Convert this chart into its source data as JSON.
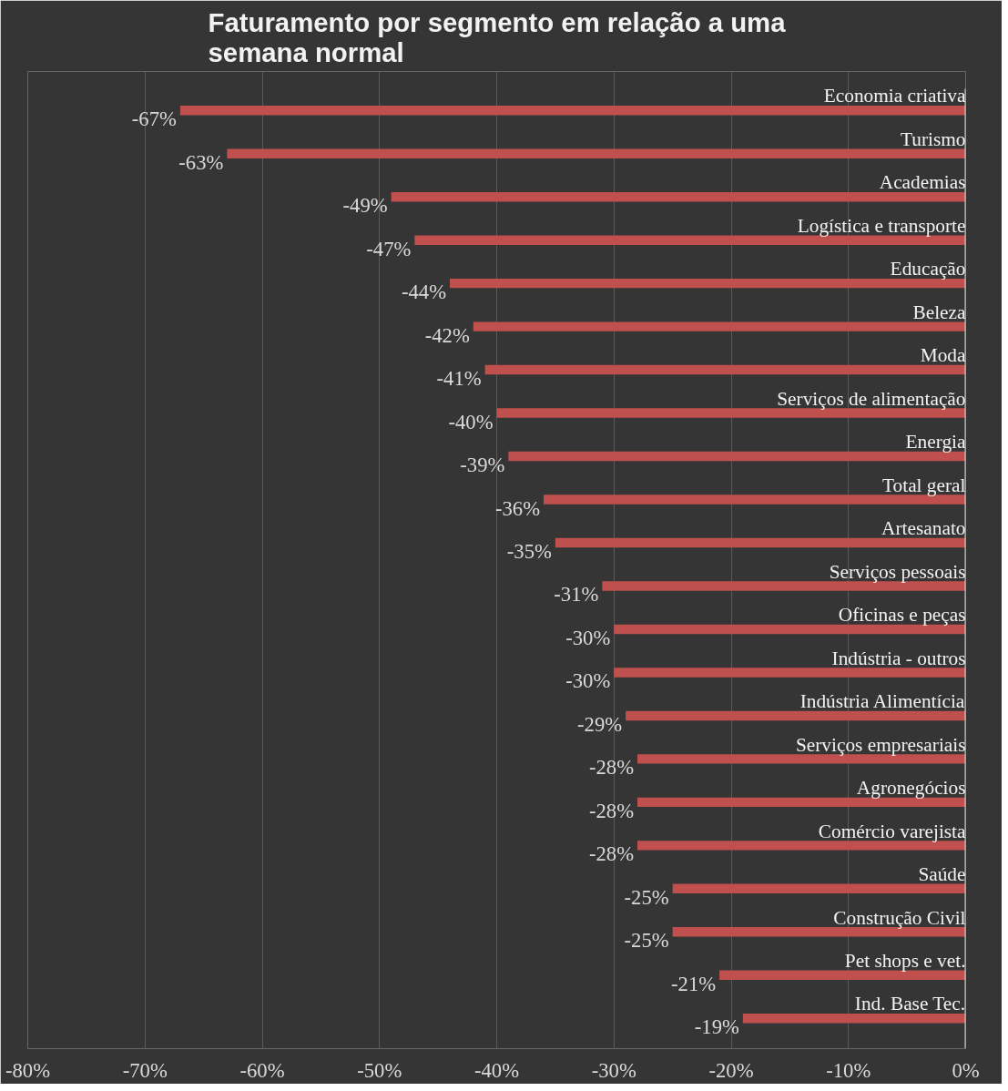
{
  "chart_data": {
    "type": "bar",
    "orientation": "horizontal",
    "title": "Faturamento por segmento em relação a uma semana normal",
    "categories": [
      "Economia criativa",
      "Turismo",
      "Academias",
      "Logística e transporte",
      "Educação",
      "Beleza",
      "Moda",
      "Serviços de alimentação",
      "Energia",
      "Total geral",
      "Artesanato",
      "Serviços pessoais",
      "Oficinas e peças",
      "Indústria - outros",
      "Indústria Alimentícia",
      "Serviços empresariais",
      "Agronegócios",
      "Comércio varejista",
      "Saúde",
      "Construção Civil",
      "Pet shops e vet.",
      "Ind. Base Tec."
    ],
    "values": [
      -67,
      -63,
      -49,
      -47,
      -44,
      -42,
      -41,
      -40,
      -39,
      -36,
      -35,
      -31,
      -30,
      -30,
      -29,
      -28,
      -28,
      -28,
      -25,
      -25,
      -21,
      -19
    ],
    "value_labels": [
      "-67%",
      "-63%",
      "-49%",
      "-47%",
      "-44%",
      "-42%",
      "-41%",
      "-40%",
      "-39%",
      "-36%",
      "-35%",
      "-31%",
      "-30%",
      "-30%",
      "-29%",
      "-28%",
      "-28%",
      "-28%",
      "-25%",
      "-25%",
      "-21%",
      "-19%"
    ],
    "color": "#c0504d",
    "xlim": [
      -80,
      0
    ],
    "xticks": [
      {
        "value": -80,
        "label": "-80%"
      },
      {
        "value": -70,
        "label": "-70%"
      },
      {
        "value": -60,
        "label": "-60%"
      },
      {
        "value": -50,
        "label": "-50%"
      },
      {
        "value": -40,
        "label": "-40%"
      },
      {
        "value": -30,
        "label": "-30%"
      },
      {
        "value": -20,
        "label": "-20%"
      },
      {
        "value": -10,
        "label": "-10%"
      },
      {
        "value": 0,
        "label": "0%"
      }
    ],
    "grid": "x"
  }
}
